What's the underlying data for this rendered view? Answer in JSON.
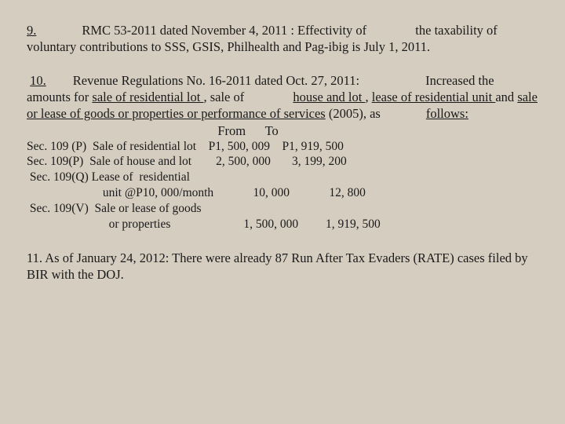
{
  "p9": {
    "num": "9.",
    "body_a": "RMC 53-2011 dated November 4, 2011 :  Effectivity of ",
    "body_b": "the taxability of voluntary contributions to SSS, GSIS,    Philhealth and Pag-ibig is July 1, 2011."
  },
  "p10": {
    "num": "10.",
    "lead_a": "Revenue Regulations No. 16-2011 dated Oct. 27, 2011:",
    "lead_b": "Increased the amounts for ",
    "u1": "sale of residential lot ",
    "plain1": ", sale of ",
    "u2": "house and lot ",
    "plain2": ", ",
    "u3": "lease of residential unit ",
    "plain3": "and ",
    "u4": "sale or lease of  goods or properties or performance of services",
    "plain4": " (2005), as",
    "follows": "follows:",
    "hdr": "                                                           From      To",
    "r1": "Sec. 109 (P)  Sale of residential lot    P1, 500, 009    P1, 919, 500",
    "r2": "Sec. 109(P)  Sale of house and lot        2, 500, 000       3, 199, 200",
    "r3a": " Sec. 109(Q) Lease of  residential",
    "r3b": "                         unit @P10, 000/month             10, 000             12, 800",
    "r4a": " Sec. 109(V)  Sale or lease of goods",
    "r4b": "                           or properties                        1, 500, 000         1, 919, 500"
  },
  "p11": {
    "text": "    11.  As of January 24, 2012:  There were already 87 Run After Tax Evaders (RATE) cases filed by BIR with the DOJ."
  }
}
